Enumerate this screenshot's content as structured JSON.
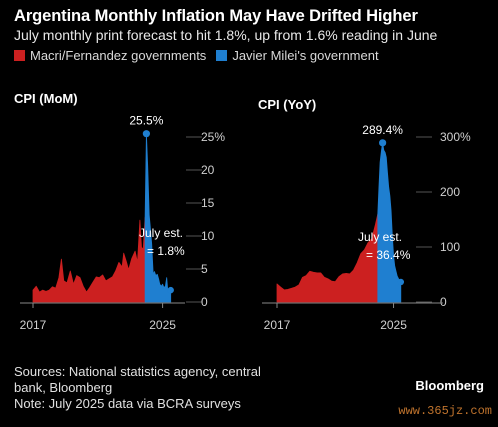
{
  "header": {
    "title": "Argentina Monthly Inflation May Have Drifted Higher",
    "subtitle": "July monthly print forecast to hit 1.8%, up from 1.6% reading in June"
  },
  "legend": [
    {
      "label": "Macri/Fernandez governments",
      "color": "#cc2020"
    },
    {
      "label": "Javier Milei's government",
      "color": "#1f7fd0"
    }
  ],
  "colors": {
    "background": "#000000",
    "macri_fernandez": "#cc2020",
    "milei": "#1f7fd0",
    "axis": "#777777"
  },
  "chart_data": [
    {
      "type": "area",
      "title": "CPI (MoM)",
      "xlim": [
        2017,
        2025.58
      ],
      "ylim": [
        0,
        25
      ],
      "x_tick_labels": [
        "2017",
        "2025"
      ],
      "x_ticks": [
        2017,
        2025
      ],
      "y_tick_labels": [
        "0",
        "5",
        "10",
        "15",
        "20",
        "25%"
      ],
      "y_ticks": [
        0,
        5,
        10,
        15,
        20,
        25
      ],
      "split_x": 2023.92,
      "series": [
        {
          "name": "Macri/Fernandez governments",
          "color": "#cc2020",
          "x": [
            2017.0,
            2017.2,
            2017.4,
            2017.6,
            2017.8,
            2018.0,
            2018.2,
            2018.4,
            2018.6,
            2018.75,
            2018.9,
            2019.1,
            2019.3,
            2019.5,
            2019.7,
            2019.9,
            2020.1,
            2020.3,
            2020.5,
            2020.7,
            2020.9,
            2021.1,
            2021.3,
            2021.5,
            2021.7,
            2021.9,
            2022.1,
            2022.3,
            2022.5,
            2022.6,
            2022.75,
            2022.9,
            2023.1,
            2023.3,
            2023.45,
            2023.6,
            2023.7,
            2023.8,
            2023.92
          ],
          "values": [
            1.8,
            2.4,
            1.5,
            1.8,
            1.6,
            1.8,
            2.3,
            2.1,
            3.7,
            6.5,
            3.2,
            2.9,
            4.7,
            2.7,
            4.0,
            3.7,
            2.4,
            1.5,
            2.2,
            3.0,
            3.8,
            3.7,
            4.1,
            3.2,
            3.5,
            3.8,
            4.7,
            6.0,
            5.3,
            7.4,
            6.2,
            4.9,
            6.6,
            7.7,
            6.0,
            12.4,
            8.3,
            8.0,
            12.8
          ]
        },
        {
          "name": "Javier Milei's government",
          "color": "#1f7fd0",
          "x": [
            2023.92,
            2024.0,
            2024.08,
            2024.17,
            2024.25,
            2024.33,
            2024.42,
            2024.5,
            2024.58,
            2024.67,
            2024.75,
            2024.83,
            2024.92,
            2025.0,
            2025.08,
            2025.17,
            2025.25,
            2025.33,
            2025.42,
            2025.5
          ],
          "values": [
            12.8,
            25.5,
            20.6,
            13.2,
            11.0,
            8.8,
            4.2,
            4.6,
            4.0,
            4.2,
            3.5,
            2.7,
            2.4,
            2.7,
            2.2,
            2.4,
            3.7,
            1.5,
            1.6,
            1.8
          ]
        }
      ],
      "annotations": [
        {
          "label": "25.5%",
          "x": 2024.0,
          "y": 25.5
        },
        {
          "label": "July est.",
          "label2": "= 1.8%",
          "x": 2025.5,
          "y": 1.8
        }
      ]
    },
    {
      "type": "area",
      "title": "CPI (YoY)",
      "xlim": [
        2017,
        2025.58
      ],
      "ylim": [
        0,
        300
      ],
      "x_tick_labels": [
        "2017",
        "2025"
      ],
      "x_ticks": [
        2017,
        2025
      ],
      "y_tick_labels": [
        "0",
        "100",
        "200",
        "300%"
      ],
      "y_ticks": [
        0,
        100,
        200,
        300
      ],
      "split_x": 2023.92,
      "series": [
        {
          "name": "Macri/Fernandez governments",
          "color": "#cc2020",
          "x": [
            2017.0,
            2017.25,
            2017.5,
            2017.75,
            2018.0,
            2018.25,
            2018.5,
            2018.75,
            2019.0,
            2019.25,
            2019.5,
            2019.75,
            2020.0,
            2020.25,
            2020.5,
            2020.75,
            2021.0,
            2021.25,
            2021.5,
            2021.75,
            2022.0,
            2022.25,
            2022.5,
            2022.75,
            2023.0,
            2023.25,
            2023.5,
            2023.75,
            2023.92
          ],
          "values": [
            33,
            27,
            22,
            23,
            25,
            27,
            31,
            45,
            48,
            56,
            54,
            53,
            53,
            45,
            42,
            38,
            37,
            46,
            51,
            52,
            51,
            58,
            71,
            88,
            95,
            108,
            115,
            140,
            160
          ]
        },
        {
          "name": "Javier Milei's government",
          "color": "#1f7fd0",
          "x": [
            2023.92,
            2024.0,
            2024.08,
            2024.17,
            2024.25,
            2024.33,
            2024.42,
            2024.5,
            2024.58,
            2024.67,
            2024.75,
            2024.83,
            2024.92,
            2025.0,
            2025.08,
            2025.17,
            2025.25,
            2025.33,
            2025.42,
            2025.5
          ],
          "values": [
            160,
            211,
            254,
            276,
            289.4,
            276,
            272,
            263,
            237,
            209,
            193,
            166,
            118,
            84,
            66,
            56,
            47,
            43,
            39,
            36.4
          ]
        }
      ],
      "annotations": [
        {
          "label": "289.4%",
          "x": 2024.25,
          "y": 289.4
        },
        {
          "label": "July est.",
          "label2": "= 36.4%",
          "x": 2025.5,
          "y": 36.4
        }
      ]
    }
  ],
  "footer": {
    "sources_line1": "Sources: National statistics agency, central",
    "sources_line2": "bank, Bloomberg",
    "note": "Note: July 2025 data via BCRA surveys",
    "brand": "Bloomberg",
    "watermark": "www.365jz.com"
  }
}
